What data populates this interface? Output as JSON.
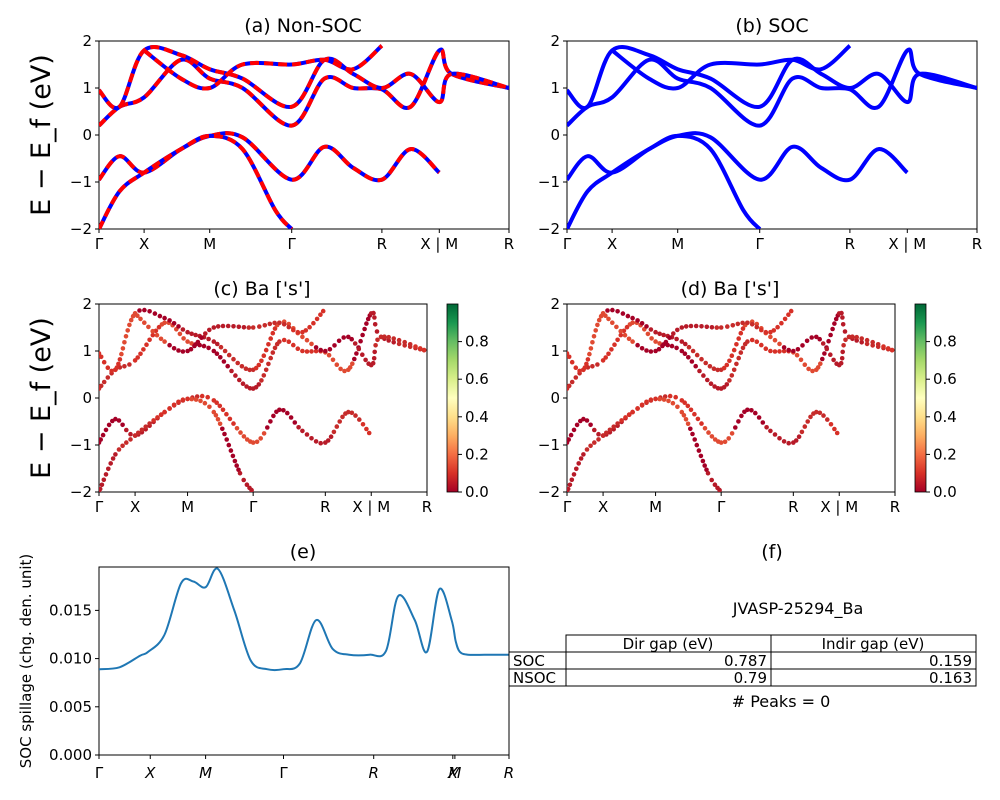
{
  "panels": {
    "a": {
      "title": "(a) Non-SOC"
    },
    "b": {
      "title": "(b) SOC"
    },
    "c": {
      "title": "(c)  Ba ['s']"
    },
    "d": {
      "title": "(d) Ba ['s']"
    },
    "e": {
      "title": "(e)"
    },
    "f": {
      "title": "(f)"
    }
  },
  "band_ylabel": "E − E_f (eV)",
  "band_kpath_labels": [
    "Γ",
    "X",
    "M",
    "Γ",
    "R",
    "X | M",
    "R"
  ],
  "spillage_kpath_labels": [
    "Γ",
    "X",
    "M",
    "Γ",
    "R",
    "X",
    "M",
    "R"
  ],
  "band_yticks": [
    "2",
    "1",
    "0",
    "−1",
    "−2"
  ],
  "colorbar_ticks": [
    "0.8",
    "0.6",
    "0.4",
    "0.2",
    "0.0"
  ],
  "spillage_yticks": [
    "0.015",
    "0.010",
    "0.005",
    "0.000"
  ],
  "spillage_ylabel": "SOC spillage (chg. den. unit)",
  "info": {
    "material_id": "JVASP-25294_Ba",
    "table": {
      "headers": [
        "",
        "Dir gap (eV)",
        "Indir gap (eV)"
      ],
      "rows": [
        {
          "label": "SOC",
          "dir": "0.787",
          "indir": "0.159"
        },
        {
          "label": "NSOC",
          "dir": "0.79",
          "indir": "0.163"
        }
      ]
    },
    "peaks_text": "# Peaks = 0"
  },
  "colors": {
    "nonsoc_line": "#ff0000",
    "nonsoc_dash_under": "#0000ff",
    "soc_line": "#0000ff",
    "spillage_line": "#1f77b4",
    "cmap": "RdYlGn"
  },
  "chart_data": [
    {
      "type": "line",
      "title": "(a) Non-SOC",
      "ylabel": "E − E_f (eV)",
      "ylim": [
        -2,
        2
      ],
      "x": [
        0,
        0.11,
        0.27,
        0.47,
        0.69,
        0.83,
        1.0
      ],
      "xticklabels": [
        "Γ",
        "X",
        "M",
        "Γ",
        "R",
        "X | M",
        "R"
      ],
      "series": [
        {
          "name": "valence-1",
          "x": [
            0,
            0.05,
            0.11,
            0.2,
            0.27,
            0.35,
            0.47,
            0.55,
            0.62,
            0.69,
            0.76,
            0.83
          ],
          "y": [
            -0.95,
            -0.45,
            -0.8,
            -0.3,
            -0.02,
            -0.05,
            -0.95,
            -0.25,
            -0.7,
            -0.95,
            -0.3,
            -0.8
          ]
        },
        {
          "name": "valence-2",
          "x": [
            0,
            0.05,
            0.11,
            0.2,
            0.27,
            0.35,
            0.43,
            0.47
          ],
          "y": [
            -2.0,
            -1.2,
            -0.8,
            -0.3,
            -0.02,
            -0.3,
            -1.6,
            -2.0
          ]
        },
        {
          "name": "conduction-1",
          "x": [
            0,
            0.05,
            0.11,
            0.2,
            0.27,
            0.35,
            0.47,
            0.55,
            0.62,
            0.69,
            0.76,
            0.83,
            0.86,
            1.0
          ],
          "y": [
            0.2,
            0.6,
            0.8,
            1.6,
            1.2,
            1.0,
            0.2,
            1.2,
            1.0,
            0.97,
            0.6,
            1.8,
            1.3,
            1.0
          ]
        },
        {
          "name": "conduction-2",
          "x": [
            0,
            0.05,
            0.11,
            0.2,
            0.27,
            0.35,
            0.47,
            0.55,
            0.62,
            0.69,
            0.76,
            0.83,
            0.86,
            1.0
          ],
          "y": [
            0.95,
            0.6,
            1.8,
            1.7,
            1.4,
            1.2,
            0.6,
            1.6,
            1.3,
            1.0,
            1.3,
            0.7,
            1.3,
            1.0
          ]
        },
        {
          "name": "conduction-3",
          "x": [
            0.11,
            0.2,
            0.27,
            0.35,
            0.47,
            0.55,
            0.62,
            0.69
          ],
          "y": [
            1.8,
            1.2,
            1.0,
            1.5,
            1.5,
            1.6,
            1.4,
            1.9
          ]
        }
      ]
    },
    {
      "type": "line",
      "title": "(b) SOC",
      "ylabel": "",
      "ylim": [
        -2,
        2
      ],
      "x": [
        0,
        0.11,
        0.27,
        0.47,
        0.69,
        0.83,
        1.0
      ],
      "xticklabels": [
        "Γ",
        "X",
        "M",
        "Γ",
        "R",
        "X | M",
        "R"
      ],
      "series": [
        {
          "name": "valence-1",
          "x": [
            0,
            0.05,
            0.11,
            0.2,
            0.27,
            0.35,
            0.47,
            0.55,
            0.62,
            0.69,
            0.76,
            0.83
          ],
          "y": [
            -0.95,
            -0.45,
            -0.8,
            -0.3,
            -0.02,
            -0.05,
            -0.95,
            -0.25,
            -0.7,
            -0.95,
            -0.3,
            -0.8
          ]
        },
        {
          "name": "valence-2",
          "x": [
            0,
            0.05,
            0.11,
            0.2,
            0.27,
            0.35,
            0.43,
            0.47
          ],
          "y": [
            -2.0,
            -1.2,
            -0.8,
            -0.3,
            -0.02,
            -0.3,
            -1.6,
            -2.0
          ]
        },
        {
          "name": "conduction-1",
          "x": [
            0,
            0.05,
            0.11,
            0.2,
            0.27,
            0.35,
            0.47,
            0.55,
            0.62,
            0.69,
            0.76,
            0.83,
            0.86,
            1.0
          ],
          "y": [
            0.2,
            0.6,
            0.8,
            1.6,
            1.2,
            1.0,
            0.2,
            1.2,
            1.0,
            0.97,
            0.6,
            1.8,
            1.3,
            1.0
          ]
        },
        {
          "name": "conduction-2",
          "x": [
            0,
            0.05,
            0.11,
            0.2,
            0.27,
            0.35,
            0.47,
            0.55,
            0.62,
            0.69,
            0.76,
            0.83,
            0.86,
            1.0
          ],
          "y": [
            0.95,
            0.6,
            1.8,
            1.7,
            1.4,
            1.2,
            0.6,
            1.6,
            1.3,
            1.0,
            1.3,
            0.7,
            1.3,
            1.0
          ]
        },
        {
          "name": "conduction-3",
          "x": [
            0.11,
            0.2,
            0.27,
            0.35,
            0.47,
            0.55,
            0.62,
            0.69
          ],
          "y": [
            1.8,
            1.2,
            1.0,
            1.5,
            1.5,
            1.6,
            1.4,
            1.9
          ]
        }
      ]
    },
    {
      "type": "scatter",
      "title": "(c)  Ba ['s']",
      "ylim": [
        -2,
        2
      ],
      "colorbar_range": [
        0.0,
        1.0
      ],
      "xticklabels": [
        "Γ",
        "X",
        "M",
        "Γ",
        "R",
        "X | M",
        "R"
      ]
    },
    {
      "type": "scatter",
      "title": "(d) Ba ['s']",
      "ylim": [
        -2,
        2
      ],
      "colorbar_range": [
        0.0,
        1.0
      ],
      "xticklabels": [
        "Γ",
        "X",
        "M",
        "Γ",
        "R",
        "X | M",
        "R"
      ]
    },
    {
      "type": "line",
      "title": "(e)",
      "ylabel": "SOC spillage (chg. den. unit)",
      "ylim": [
        0,
        0.0195
      ],
      "xticklabels": [
        "Γ",
        "X",
        "M",
        "Γ",
        "R",
        "X",
        "M",
        "R"
      ],
      "x": [
        0,
        0.05,
        0.1,
        0.12,
        0.16,
        0.2,
        0.23,
        0.26,
        0.29,
        0.33,
        0.37,
        0.41,
        0.45,
        0.49,
        0.53,
        0.57,
        0.61,
        0.66,
        0.7,
        0.73,
        0.77,
        0.8,
        0.83,
        0.86,
        0.87,
        0.88,
        0.9,
        0.94,
        1.0
      ],
      "values": [
        0.0089,
        0.0091,
        0.0103,
        0.0107,
        0.0125,
        0.0178,
        0.018,
        0.0174,
        0.0193,
        0.015,
        0.0098,
        0.0089,
        0.0089,
        0.0095,
        0.014,
        0.011,
        0.0104,
        0.0104,
        0.0108,
        0.0165,
        0.014,
        0.0107,
        0.0172,
        0.014,
        0.0118,
        0.0107,
        0.0104,
        0.0104,
        0.0104
      ]
    }
  ]
}
